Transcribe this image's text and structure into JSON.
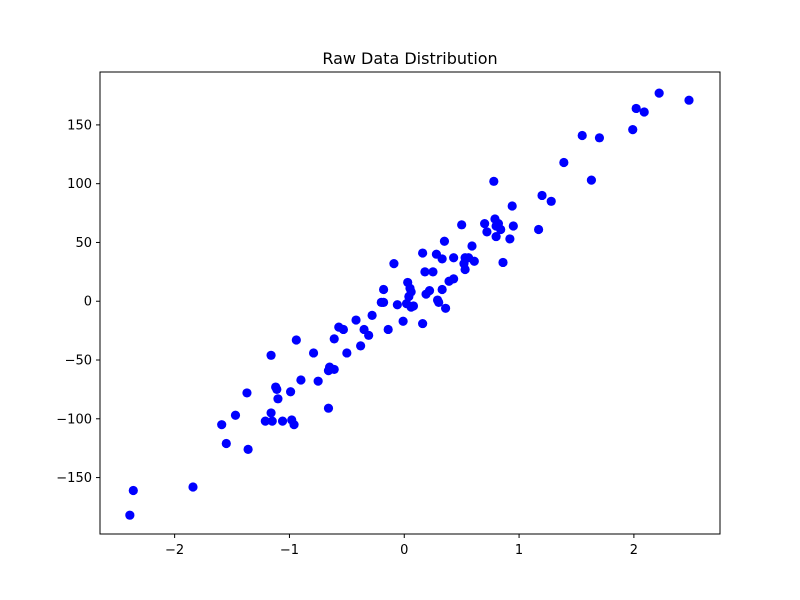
{
  "chart_data": {
    "type": "scatter",
    "title": "Raw Data Distribution",
    "xlabel": "",
    "ylabel": "",
    "xlim": [
      -2.65,
      2.75
    ],
    "ylim": [
      -198,
      195
    ],
    "x_ticks": [
      -2,
      -1,
      0,
      1,
      2
    ],
    "y_ticks": [
      -150,
      -100,
      -50,
      0,
      50,
      100,
      150
    ],
    "grid": false,
    "point_color": "#0000ff",
    "series": [
      {
        "points": [
          [
            -2.39,
            -182
          ],
          [
            -2.36,
            -161
          ],
          [
            -1.84,
            -158
          ],
          [
            -1.59,
            -105
          ],
          [
            -1.55,
            -121
          ],
          [
            -1.47,
            -97
          ],
          [
            -1.37,
            -78
          ],
          [
            -1.36,
            -126
          ],
          [
            -1.21,
            -102
          ],
          [
            -1.15,
            -102
          ],
          [
            -1.16,
            -95
          ],
          [
            -1.16,
            -46
          ],
          [
            -1.12,
            -73
          ],
          [
            -1.11,
            -75
          ],
          [
            -1.1,
            -83
          ],
          [
            -1.06,
            -102
          ],
          [
            -0.99,
            -77
          ],
          [
            -0.98,
            -101
          ],
          [
            -0.96,
            -105
          ],
          [
            -0.94,
            -33
          ],
          [
            -0.9,
            -67
          ],
          [
            -0.79,
            -44
          ],
          [
            -0.75,
            -68
          ],
          [
            -0.66,
            -91
          ],
          [
            -0.66,
            -59
          ],
          [
            -0.65,
            -56
          ],
          [
            -0.61,
            -58
          ],
          [
            -0.61,
            -32
          ],
          [
            -0.57,
            -22
          ],
          [
            -0.53,
            -24
          ],
          [
            -0.5,
            -44
          ],
          [
            -0.42,
            -16
          ],
          [
            -0.38,
            -38
          ],
          [
            -0.35,
            -24
          ],
          [
            -0.31,
            -29
          ],
          [
            -0.28,
            -12
          ],
          [
            -0.2,
            -1
          ],
          [
            -0.18,
            10
          ],
          [
            -0.18,
            -1
          ],
          [
            -0.14,
            -24
          ],
          [
            -0.09,
            32
          ],
          [
            -0.06,
            -3
          ],
          [
            -0.01,
            -17
          ],
          [
            0.02,
            -2
          ],
          [
            0.03,
            16
          ],
          [
            0.04,
            4
          ],
          [
            0.05,
            11
          ],
          [
            0.06,
            -5
          ],
          [
            0.06,
            8
          ],
          [
            0.08,
            -4
          ],
          [
            0.16,
            -19
          ],
          [
            0.16,
            41
          ],
          [
            0.18,
            25
          ],
          [
            0.19,
            6
          ],
          [
            0.22,
            9
          ],
          [
            0.25,
            25
          ],
          [
            0.28,
            40
          ],
          [
            0.29,
            1
          ],
          [
            0.3,
            -1
          ],
          [
            0.33,
            10
          ],
          [
            0.33,
            36
          ],
          [
            0.35,
            51
          ],
          [
            0.36,
            -6
          ],
          [
            0.39,
            17
          ],
          [
            0.43,
            19
          ],
          [
            0.43,
            37
          ],
          [
            0.5,
            65
          ],
          [
            0.52,
            32
          ],
          [
            0.53,
            27
          ],
          [
            0.53,
            37
          ],
          [
            0.56,
            37
          ],
          [
            0.59,
            47
          ],
          [
            0.61,
            34
          ],
          [
            0.7,
            66
          ],
          [
            0.72,
            59
          ],
          [
            0.78,
            102
          ],
          [
            0.79,
            70
          ],
          [
            0.8,
            55
          ],
          [
            0.8,
            64
          ],
          [
            0.82,
            66
          ],
          [
            0.84,
            61
          ],
          [
            0.86,
            33
          ],
          [
            0.92,
            53
          ],
          [
            0.94,
            81
          ],
          [
            0.95,
            64
          ],
          [
            1.17,
            61
          ],
          [
            1.2,
            90
          ],
          [
            1.28,
            85
          ],
          [
            1.39,
            118
          ],
          [
            1.55,
            141
          ],
          [
            1.63,
            103
          ],
          [
            1.7,
            139
          ],
          [
            1.99,
            146
          ],
          [
            2.02,
            164
          ],
          [
            2.09,
            161
          ],
          [
            2.22,
            177
          ],
          [
            2.48,
            171
          ]
        ]
      }
    ]
  }
}
